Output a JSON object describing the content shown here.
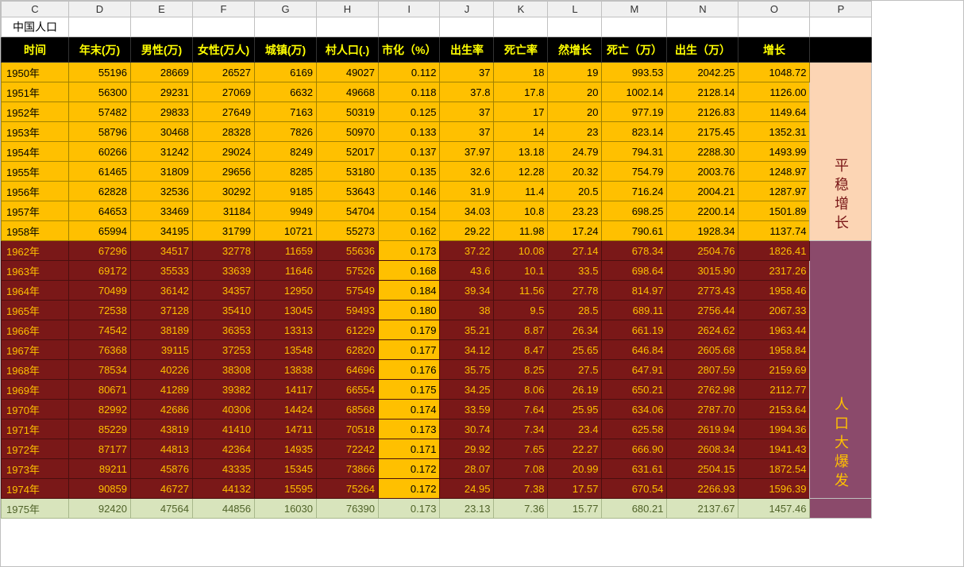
{
  "title": "中国人口",
  "columns": [
    "C",
    "D",
    "E",
    "F",
    "G",
    "H",
    "I",
    "J",
    "K",
    "L",
    "M",
    "N",
    "O",
    "P"
  ],
  "headers": [
    "时间",
    "年末(万)",
    "男性(万)",
    "女性(万人)",
    "城镇(万)",
    "村人口(.)",
    "市化（%）",
    "出生率",
    "死亡率",
    "然增长",
    "死亡（万）",
    "出生（万）",
    "增长",
    ""
  ],
  "sections": [
    {
      "name": "section-orange",
      "side_label": "平稳增长",
      "side_class": "side-peach",
      "bg": "#ffc000",
      "fg": "#000000",
      "rows": [
        [
          "1950年",
          "55196",
          "28669",
          "26527",
          "6169",
          "49027",
          "0.112",
          "37",
          "18",
          "19",
          "993.53",
          "2042.25",
          "1048.72"
        ],
        [
          "1951年",
          "56300",
          "29231",
          "27069",
          "6632",
          "49668",
          "0.118",
          "37.8",
          "17.8",
          "20",
          "1002.14",
          "2128.14",
          "1126.00"
        ],
        [
          "1952年",
          "57482",
          "29833",
          "27649",
          "7163",
          "50319",
          "0.125",
          "37",
          "17",
          "20",
          "977.19",
          "2126.83",
          "1149.64"
        ],
        [
          "1953年",
          "58796",
          "30468",
          "28328",
          "7826",
          "50970",
          "0.133",
          "37",
          "14",
          "23",
          "823.14",
          "2175.45",
          "1352.31"
        ],
        [
          "1954年",
          "60266",
          "31242",
          "29024",
          "8249",
          "52017",
          "0.137",
          "37.97",
          "13.18",
          "24.79",
          "794.31",
          "2288.30",
          "1493.99"
        ],
        [
          "1955年",
          "61465",
          "31809",
          "29656",
          "8285",
          "53180",
          "0.135",
          "32.6",
          "12.28",
          "20.32",
          "754.79",
          "2003.76",
          "1248.97"
        ],
        [
          "1956年",
          "62828",
          "32536",
          "30292",
          "9185",
          "53643",
          "0.146",
          "31.9",
          "11.4",
          "20.5",
          "716.24",
          "2004.21",
          "1287.97"
        ],
        [
          "1957年",
          "64653",
          "33469",
          "31184",
          "9949",
          "54704",
          "0.154",
          "34.03",
          "10.8",
          "23.23",
          "698.25",
          "2200.14",
          "1501.89"
        ],
        [
          "1958年",
          "65994",
          "34195",
          "31799",
          "10721",
          "55273",
          "0.162",
          "29.22",
          "11.98",
          "17.24",
          "790.61",
          "1928.34",
          "1137.74"
        ]
      ]
    },
    {
      "name": "section-darkred",
      "side_label": "人口大爆发",
      "side_class": "side-plum",
      "bg": "#7a1818",
      "fg": "#ffc000",
      "rows": [
        [
          "1962年",
          "67296",
          "34517",
          "32778",
          "11659",
          "55636",
          "0.173",
          "37.22",
          "10.08",
          "27.14",
          "678.34",
          "2504.76",
          "1826.41"
        ],
        [
          "1963年",
          "69172",
          "35533",
          "33639",
          "11646",
          "57526",
          "0.168",
          "43.6",
          "10.1",
          "33.5",
          "698.64",
          "3015.90",
          "2317.26"
        ],
        [
          "1964年",
          "70499",
          "36142",
          "34357",
          "12950",
          "57549",
          "0.184",
          "39.34",
          "11.56",
          "27.78",
          "814.97",
          "2773.43",
          "1958.46"
        ],
        [
          "1965年",
          "72538",
          "37128",
          "35410",
          "13045",
          "59493",
          "0.180",
          "38",
          "9.5",
          "28.5",
          "689.11",
          "2756.44",
          "2067.33"
        ],
        [
          "1966年",
          "74542",
          "38189",
          "36353",
          "13313",
          "61229",
          "0.179",
          "35.21",
          "8.87",
          "26.34",
          "661.19",
          "2624.62",
          "1963.44"
        ],
        [
          "1967年",
          "76368",
          "39115",
          "37253",
          "13548",
          "62820",
          "0.177",
          "34.12",
          "8.47",
          "25.65",
          "646.84",
          "2605.68",
          "1958.84"
        ],
        [
          "1968年",
          "78534",
          "40226",
          "38308",
          "13838",
          "64696",
          "0.176",
          "35.75",
          "8.25",
          "27.5",
          "647.91",
          "2807.59",
          "2159.69"
        ],
        [
          "1969年",
          "80671",
          "41289",
          "39382",
          "14117",
          "66554",
          "0.175",
          "34.25",
          "8.06",
          "26.19",
          "650.21",
          "2762.98",
          "2112.77"
        ],
        [
          "1970年",
          "82992",
          "42686",
          "40306",
          "14424",
          "68568",
          "0.174",
          "33.59",
          "7.64",
          "25.95",
          "634.06",
          "2787.70",
          "2153.64"
        ],
        [
          "1971年",
          "85229",
          "43819",
          "41410",
          "14711",
          "70518",
          "0.173",
          "30.74",
          "7.34",
          "23.4",
          "625.58",
          "2619.94",
          "1994.36"
        ],
        [
          "1972年",
          "87177",
          "44813",
          "42364",
          "14935",
          "72242",
          "0.171",
          "29.92",
          "7.65",
          "22.27",
          "666.90",
          "2608.34",
          "1941.43"
        ],
        [
          "1973年",
          "89211",
          "45876",
          "43335",
          "15345",
          "73866",
          "0.172",
          "28.07",
          "7.08",
          "20.99",
          "631.61",
          "2504.15",
          "1872.54"
        ],
        [
          "1974年",
          "90859",
          "46727",
          "44132",
          "15595",
          "75264",
          "0.172",
          "24.95",
          "7.38",
          "17.57",
          "670.54",
          "2266.93",
          "1596.39"
        ]
      ]
    },
    {
      "name": "section-green",
      "side_label": "",
      "side_class": "side-plum",
      "bg": "#d8e4bc",
      "fg": "#4f6228",
      "rows": [
        [
          "1975年",
          "92420",
          "47564",
          "44856",
          "16030",
          "76390",
          "0.173",
          "23.13",
          "7.36",
          "15.77",
          "680.21",
          "2137.67",
          "1457.46"
        ]
      ]
    }
  ]
}
